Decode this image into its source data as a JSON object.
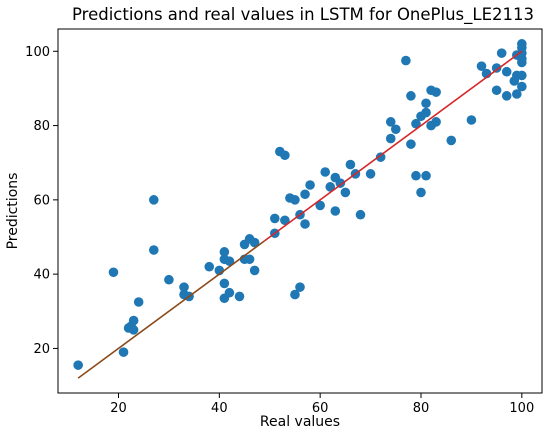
{
  "chart_data": {
    "type": "scatter",
    "title": "Predictions and real values in LSTM for OnePlus_LE2113",
    "xlabel": "Real values",
    "ylabel": "Predictions",
    "xlim": [
      8,
      104
    ],
    "ylim": [
      8,
      106
    ],
    "xticks": [
      20,
      40,
      60,
      80,
      100
    ],
    "yticks": [
      20,
      40,
      60,
      80,
      100
    ],
    "grid": false,
    "legend": "none",
    "colors": {
      "points": "#1f77b4",
      "fit_line": "#d62728",
      "fit_line_lower": "#8c4a1a"
    },
    "series": [
      {
        "points": [
          [
            12,
            15.5
          ],
          [
            19,
            40.5
          ],
          [
            21,
            19
          ],
          [
            22,
            25.5
          ],
          [
            22.5,
            26
          ],
          [
            23,
            25
          ],
          [
            23,
            27.5
          ],
          [
            24,
            32.5
          ],
          [
            27,
            60
          ],
          [
            27,
            46.5
          ],
          [
            30,
            38.5
          ],
          [
            33,
            36.5
          ],
          [
            33,
            34.5
          ],
          [
            34,
            34
          ],
          [
            38,
            42
          ],
          [
            40,
            41
          ],
          [
            41,
            46
          ],
          [
            41,
            44
          ],
          [
            41,
            37.5
          ],
          [
            41,
            33.5
          ],
          [
            42,
            43.5
          ],
          [
            42,
            35
          ],
          [
            44,
            34
          ],
          [
            45,
            48
          ],
          [
            45,
            44
          ],
          [
            46,
            49.5
          ],
          [
            46,
            44
          ],
          [
            47,
            48.5
          ],
          [
            47,
            41
          ],
          [
            51,
            55
          ],
          [
            51,
            51
          ],
          [
            52,
            73
          ],
          [
            53,
            72
          ],
          [
            53,
            54.5
          ],
          [
            54,
            60.5
          ],
          [
            55,
            60
          ],
          [
            55,
            34.5
          ],
          [
            56,
            36.5
          ],
          [
            56,
            56
          ],
          [
            57,
            61.5
          ],
          [
            57,
            53.5
          ],
          [
            58,
            64
          ],
          [
            60,
            58.5
          ],
          [
            61,
            67.5
          ],
          [
            62,
            63.5
          ],
          [
            63,
            66
          ],
          [
            63,
            57
          ],
          [
            64,
            64.5
          ],
          [
            65,
            62
          ],
          [
            66,
            69.5
          ],
          [
            67,
            67
          ],
          [
            68,
            56
          ],
          [
            70,
            67
          ],
          [
            72,
            71.5
          ],
          [
            74,
            81
          ],
          [
            74,
            76.5
          ],
          [
            75,
            79
          ],
          [
            77,
            97.5
          ],
          [
            78,
            88
          ],
          [
            78,
            75
          ],
          [
            79,
            80.5
          ],
          [
            79,
            66.5
          ],
          [
            80,
            62
          ],
          [
            80,
            82.5
          ],
          [
            81,
            86
          ],
          [
            81,
            83.5
          ],
          [
            81,
            66.5
          ],
          [
            82,
            89.5
          ],
          [
            82,
            80
          ],
          [
            83,
            89
          ],
          [
            83,
            81
          ],
          [
            86,
            76
          ],
          [
            90,
            81.5
          ],
          [
            92,
            96
          ],
          [
            93,
            94
          ],
          [
            95,
            95.5
          ],
          [
            95,
            89.5
          ],
          [
            96,
            99.5
          ],
          [
            97,
            94.5
          ],
          [
            97,
            88
          ],
          [
            98.5,
            92
          ],
          [
            99,
            99
          ],
          [
            99,
            93.5
          ],
          [
            99,
            88.5
          ],
          [
            100,
            102
          ],
          [
            100,
            101
          ],
          [
            100,
            99.5
          ],
          [
            100,
            98
          ],
          [
            100,
            97
          ],
          [
            100,
            93.5
          ],
          [
            100,
            90.5
          ]
        ]
      }
    ],
    "fit_line": {
      "x": [
        12,
        100
      ],
      "y": [
        12,
        100
      ]
    }
  }
}
